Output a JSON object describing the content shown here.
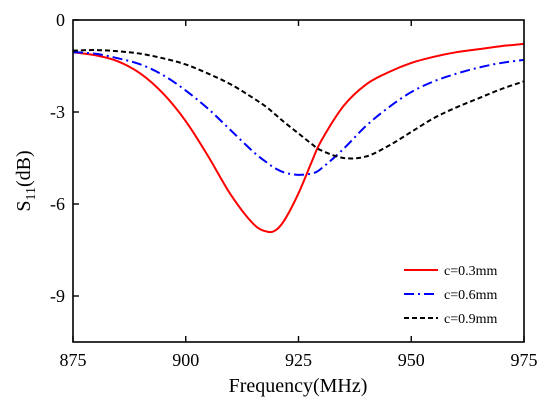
{
  "chart_data": {
    "type": "line",
    "title": "",
    "xlabel": "Frequency(MHz)",
    "ylabel": "S11(dB)",
    "ylabel_main": "S",
    "ylabel_sub": "11",
    "ylabel_unit": "(dB)",
    "xlim": [
      875,
      975
    ],
    "ylim": [
      -10.5,
      0
    ],
    "xticks": [
      875,
      900,
      925,
      950,
      975
    ],
    "yticks": [
      0,
      -3,
      -6,
      -9
    ],
    "xtick_labels": [
      "875",
      "900",
      "925",
      "950",
      "975"
    ],
    "ytick_labels": [
      "0",
      "-3",
      "-6",
      "-9"
    ],
    "grid": false,
    "legend_position": "bottom-right",
    "x": [
      875,
      880,
      885,
      890,
      895,
      900,
      905,
      910,
      915,
      918,
      920,
      922,
      925,
      928,
      930,
      935,
      940,
      945,
      950,
      955,
      960,
      965,
      970,
      975
    ],
    "series": [
      {
        "name": "c=0.3mm",
        "color": "#ff0000",
        "dash": "solid",
        "values": [
          -1.05,
          -1.15,
          -1.35,
          -1.75,
          -2.4,
          -3.3,
          -4.45,
          -5.7,
          -6.65,
          -6.9,
          -6.85,
          -6.5,
          -5.65,
          -4.6,
          -3.95,
          -2.8,
          -2.1,
          -1.7,
          -1.4,
          -1.2,
          -1.05,
          -0.95,
          -0.85,
          -0.78
        ]
      },
      {
        "name": "c=0.6mm",
        "color": "#0000ff",
        "dash": "dashdot",
        "values": [
          -1.05,
          -1.1,
          -1.25,
          -1.45,
          -1.8,
          -2.3,
          -2.9,
          -3.6,
          -4.3,
          -4.65,
          -4.85,
          -4.98,
          -5.05,
          -5.0,
          -4.85,
          -4.2,
          -3.45,
          -2.85,
          -2.35,
          -2.0,
          -1.75,
          -1.55,
          -1.4,
          -1.3
        ]
      },
      {
        "name": "c=0.9mm",
        "color": "#000000",
        "dash": "dashed",
        "values": [
          -1.0,
          -0.98,
          -1.02,
          -1.1,
          -1.25,
          -1.45,
          -1.75,
          -2.1,
          -2.55,
          -2.85,
          -3.1,
          -3.35,
          -3.7,
          -4.05,
          -4.25,
          -4.5,
          -4.45,
          -4.1,
          -3.65,
          -3.2,
          -2.85,
          -2.55,
          -2.25,
          -2.0
        ]
      }
    ]
  }
}
